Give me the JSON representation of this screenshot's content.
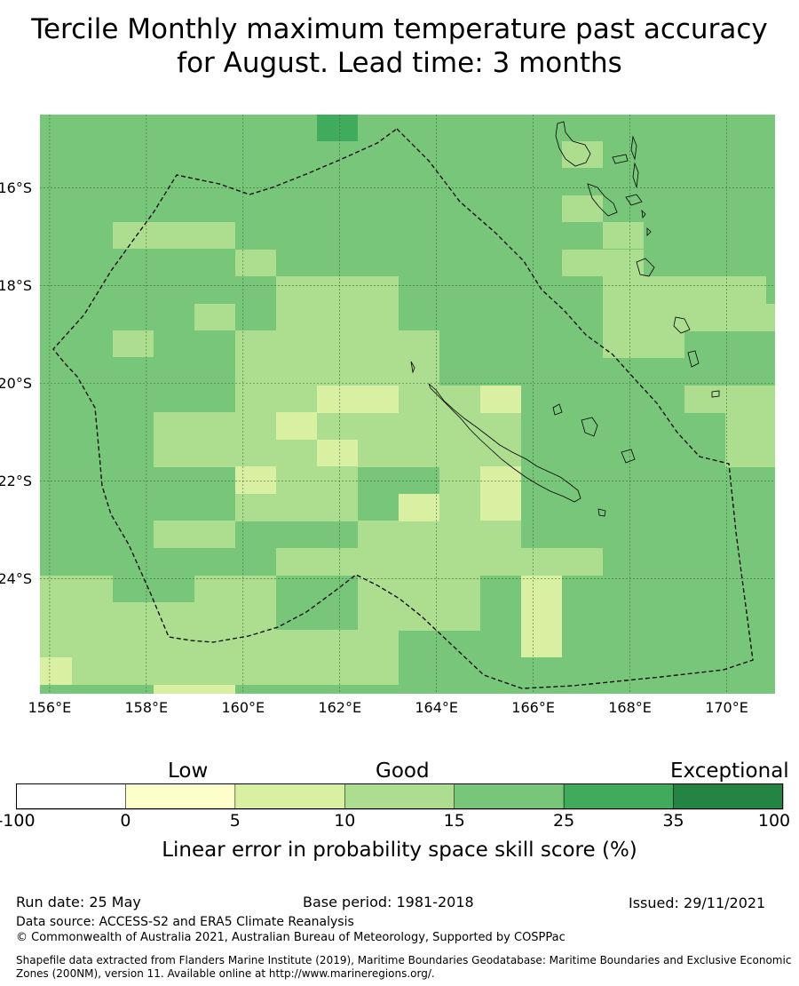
{
  "title_line1": "Tercile Monthly maximum temperature past accuracy",
  "title_line2": "for August. Lead time: 3 months",
  "map": {
    "lon_range": [
      155.8,
      171.0
    ],
    "lat_range": [
      -26.35,
      -14.5
    ],
    "lon_labels": [
      "156°E",
      "158°E",
      "160°E",
      "162°E",
      "164°E",
      "166°E",
      "168°E",
      "170°E"
    ],
    "lon_values": [
      156,
      158,
      160,
      162,
      164,
      166,
      168,
      170
    ],
    "lat_labels": [
      "16°S",
      "18°S",
      "20°S",
      "22°S",
      "24°S"
    ],
    "lat_values": [
      -16,
      -18,
      -20,
      -22,
      -24
    ]
  },
  "colorbar": {
    "headings": [
      "Low",
      "Good",
      "Exceptional"
    ],
    "ticks": [
      "-100",
      "0",
      "5",
      "10",
      "15",
      "25",
      "35",
      "100"
    ],
    "colors": [
      "#ffffff",
      "#ffffcc",
      "#d9f0a3",
      "#addd8e",
      "#78c679",
      "#41ab5d",
      "#238443"
    ],
    "title": "Linear error in probability space skill score (%)"
  },
  "footer": {
    "run_date": "Run date: 25 May",
    "base_period": "Base period: 1981-2018",
    "issued": "Issued: 29/11/2021",
    "data_source": "Data source: ACCESS-S2 and ERA5 Climate Reanalysis",
    "copyright": "© Commonwealth of Australia 2021, Australian Bureau of Meteorology, Supported by COSPPac",
    "shapefile_line1": "Shapefile data extracted from Flanders Marine Institute (2019), Maritime Boundaries Geodatabase: Maritime Boundaries and Exclusive Economic",
    "shapefile_line2": "Zones (200NM), version 11. Available online at http://www.marineregions.org/."
  }
}
